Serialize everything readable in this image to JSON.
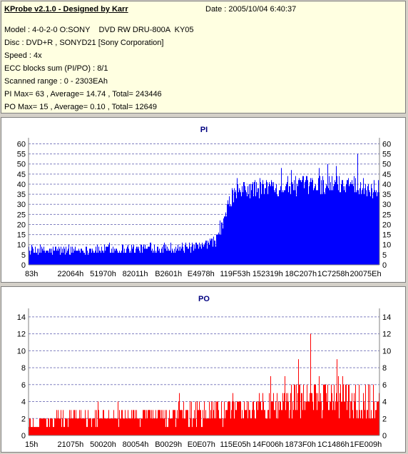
{
  "header": {
    "title": "KProbe v2.1.0 - Designed by Karr",
    "date": "Date : 2005/10/04 6:40:37",
    "lines": [
      "Model : 4-0-2-0 O:SONY    DVD RW DRU-800A  KY05",
      "Disc : DVD+R , SONYD21 [Sony Corporation]",
      "Speed : 4x",
      "ECC blocks sum (PI/PO) : 8/1",
      "Scanned range : 0 - 2303EAh",
      "PI Max= 63 , Average= 14.74 , Total= 243446",
      "PO Max= 15 , Average= 0.10 , Total= 12649"
    ]
  },
  "colors": {
    "pi": "#0000ff",
    "po": "#ff0000",
    "title": "#000080",
    "grid": "#8080c0"
  },
  "chart_data": [
    {
      "type": "bar",
      "title": "PI",
      "ylim": [
        0,
        63
      ],
      "yticks": [
        0,
        5,
        10,
        15,
        20,
        25,
        30,
        35,
        40,
        45,
        50,
        55,
        60
      ],
      "xtick_labels": [
        "83h",
        "22064h",
        "51970h",
        "82011h",
        "B2601h",
        "E4978h",
        "119F53h",
        "152319h",
        "18C207h",
        "1C7258h",
        "20075Eh"
      ],
      "grid": true,
      "profile": [
        {
          "x": 0.0,
          "base": 6,
          "spread": 3,
          "spike": 11
        },
        {
          "x": 0.49,
          "base": 8,
          "spread": 3,
          "spike": 14
        },
        {
          "x": 0.54,
          "base": 12,
          "spread": 4,
          "spike": 20
        },
        {
          "x": 0.58,
          "base": 33,
          "spread": 6,
          "spike": 42
        },
        {
          "x": 0.62,
          "base": 36,
          "spread": 6,
          "spike": 50
        },
        {
          "x": 0.78,
          "base": 38,
          "spread": 6,
          "spike": 55
        },
        {
          "x": 0.93,
          "base": 39,
          "spread": 6,
          "spike": 62
        },
        {
          "x": 1.0,
          "base": 35,
          "spread": 6,
          "spike": 48
        }
      ],
      "series": [
        {
          "max": 63,
          "average": 14.74
        }
      ]
    },
    {
      "type": "bar",
      "title": "PO",
      "ylim": [
        0,
        15
      ],
      "yticks": [
        0,
        2,
        4,
        6,
        8,
        10,
        12,
        14
      ],
      "xtick_labels": [
        "15h",
        "21075h",
        "50020h",
        "80054h",
        "B0029h",
        "E0E07h",
        "115E05h",
        "14F006h",
        "1873F0h",
        "1C1486h",
        "1FE009h"
      ],
      "grid": true,
      "profile": [
        {
          "x": 0.0,
          "base": 1,
          "spread": 1,
          "spike": 2
        },
        {
          "x": 0.13,
          "base": 2,
          "spread": 1,
          "spike": 4
        },
        {
          "x": 0.38,
          "base": 2,
          "spread": 1,
          "spike": 4
        },
        {
          "x": 0.45,
          "base": 2,
          "spread": 2,
          "spike": 6
        },
        {
          "x": 0.7,
          "base": 3,
          "spread": 2,
          "spike": 8
        },
        {
          "x": 0.85,
          "base": 4,
          "spread": 3,
          "spike": 15
        },
        {
          "x": 1.0,
          "base": 3,
          "spread": 3,
          "spike": 9
        }
      ],
      "series": [
        {
          "max": 15,
          "average": 0.1
        }
      ]
    }
  ]
}
